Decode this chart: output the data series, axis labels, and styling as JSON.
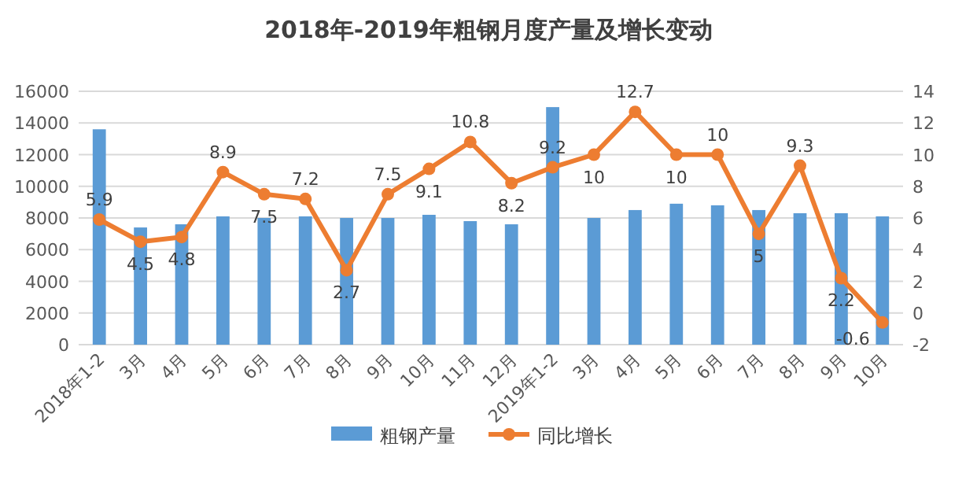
{
  "chart_data": {
    "type": "bar",
    "title": "2018年-2019年粗钢月度产量及增长变动",
    "categories": [
      "2018年1-2",
      "3月",
      "4月",
      "5月",
      "6月",
      "7月",
      "8月",
      "9月",
      "10月",
      "11月",
      "12月",
      "2019年1-2",
      "3月",
      "4月",
      "5月",
      "6月",
      "7月",
      "8月",
      "9月",
      "10月"
    ],
    "series": [
      {
        "name": "粗钢产量",
        "color": "#5b9bd5",
        "values": [
          13600,
          7400,
          7600,
          8100,
          8000,
          8100,
          8000,
          8000,
          8200,
          7800,
          7600,
          15000,
          8000,
          8500,
          8900,
          8800,
          8500,
          8300,
          8300,
          8100
        ]
      },
      {
        "name": "同比增长",
        "type": "line",
        "axis": "y2",
        "color": "#ed7d31",
        "marker": "circle",
        "values": [
          5.9,
          4.5,
          4.8,
          8.9,
          7.5,
          7.2,
          2.7,
          7.5,
          9.1,
          10.8,
          8.2,
          9.2,
          10,
          12.7,
          10,
          10,
          5,
          9.3,
          2.2,
          -0.6
        ],
        "value_labels": [
          "5.9",
          "4.5",
          "4.8",
          "8.9",
          "7.5",
          "7.2",
          "2.7",
          "7.5",
          "9.1",
          "10.8",
          "8.2",
          "9.2",
          "10",
          "12.7",
          "10",
          "10",
          "5",
          "9.3",
          "2.2",
          "-0.6"
        ]
      }
    ],
    "ylim": [
      0,
      16000
    ],
    "yticks": [
      0,
      2000,
      4000,
      6000,
      8000,
      10000,
      12000,
      14000,
      16000
    ],
    "y2lim": [
      -2,
      14
    ],
    "y2ticks": [
      -2,
      0,
      2,
      4,
      6,
      8,
      10,
      12,
      14
    ],
    "grid": "y",
    "legend": "bottom"
  }
}
